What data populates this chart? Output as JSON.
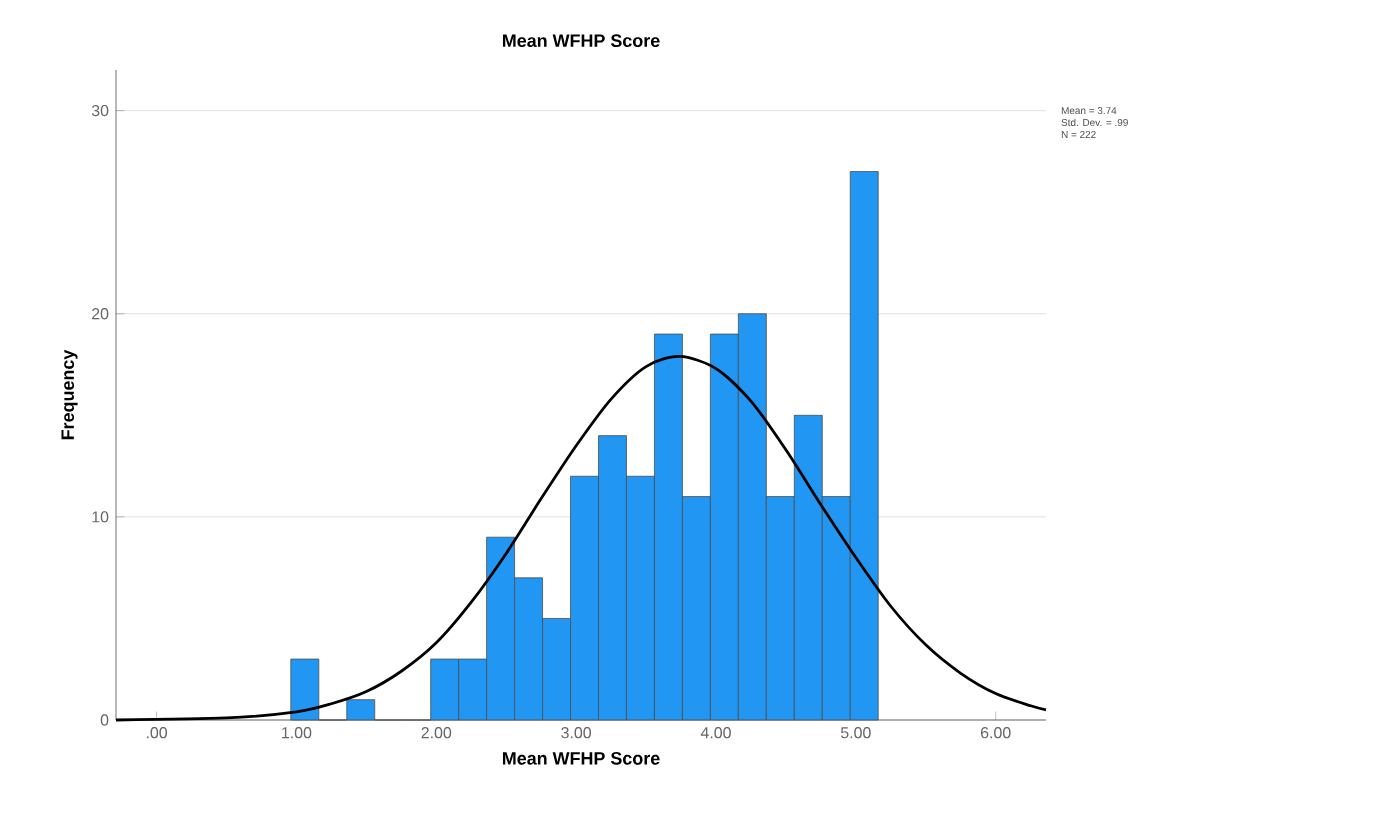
{
  "chart_data": {
    "type": "histogram",
    "title": "Mean WFHP Score",
    "xlabel": "Mean WFHP Score",
    "ylabel": "Frequency",
    "series": [
      {
        "color": "#2196f3",
        "bins": [
          0.96,
          1.16,
          1.36,
          1.56,
          1.76,
          1.96,
          2.16,
          2.36,
          2.56,
          2.76,
          2.96,
          3.16,
          3.36,
          3.56,
          3.76,
          3.96,
          4.16,
          4.36,
          4.56,
          4.76,
          4.96,
          5.16
        ],
        "values": [
          3,
          0,
          1,
          0,
          0,
          3,
          3,
          9,
          7,
          5,
          12,
          14,
          12,
          19,
          11,
          19,
          20,
          11,
          15,
          11,
          27
        ]
      },
      {
        "type": "line",
        "color": "#000000",
        "x": [
          -0.29,
          0.5,
          1.0,
          1.25,
          1.5,
          1.75,
          2.0,
          2.25,
          2.5,
          2.75,
          3.0,
          3.25,
          3.5,
          3.74,
          4.0,
          4.25,
          4.5,
          4.75,
          5.0,
          5.25,
          5.5,
          5.75,
          6.0,
          6.25,
          6.36
        ],
        "values": [
          0,
          0.1,
          0.4,
          0.8,
          1.4,
          2.4,
          3.8,
          5.8,
          8.2,
          10.9,
          13.5,
          15.8,
          17.4,
          17.9,
          17.3,
          15.7,
          13.3,
          10.6,
          8.0,
          5.6,
          3.7,
          2.3,
          1.3,
          0.7,
          0.5
        ]
      }
    ],
    "xlim": [
      -0.29,
      6.36
    ],
    "ylim": [
      0,
      32
    ],
    "xticks": [
      {
        "value": 0,
        "label": ".00"
      },
      {
        "value": 1,
        "label": "1.00"
      },
      {
        "value": 2,
        "label": "2.00"
      },
      {
        "value": 3,
        "label": "3.00"
      },
      {
        "value": 4,
        "label": "4.00"
      },
      {
        "value": 5,
        "label": "5.00"
      },
      {
        "value": 6,
        "label": "6.00"
      }
    ],
    "yticks": [
      0,
      10,
      20,
      30
    ],
    "grid": "y",
    "annotations": [
      "Mean = 3.74",
      "Std. Dev. = .99",
      "N = 222"
    ]
  }
}
